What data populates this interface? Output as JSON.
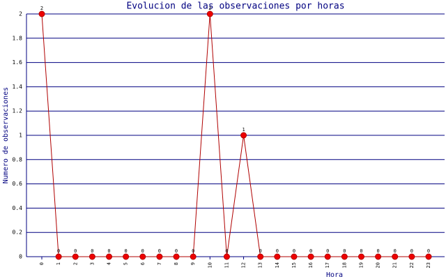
{
  "chart_data": {
    "type": "line",
    "title": "Evolucion de las observaciones por horas",
    "x_label": "Hora",
    "y_label": "Numero de observaciones",
    "categories": [
      "0",
      "1",
      "2",
      "3",
      "4",
      "5",
      "6",
      "7",
      "8",
      "9",
      "10",
      "11",
      "12",
      "13",
      "14",
      "15",
      "16",
      "17",
      "18",
      "19",
      "20",
      "21",
      "22",
      "23"
    ],
    "values": [
      2,
      0,
      0,
      0,
      0,
      0,
      0,
      0,
      0,
      0,
      2,
      0,
      1,
      0,
      0,
      0,
      0,
      0,
      0,
      0,
      0,
      0,
      0,
      0
    ],
    "color": "#b00000",
    "marker_color": "#ee0000",
    "ylim": [
      0,
      2
    ],
    "yticks": [
      0,
      0.2,
      0.4,
      0.6,
      0.8,
      1,
      1.2,
      1.4,
      1.6,
      1.8,
      2
    ],
    "grid": true
  }
}
